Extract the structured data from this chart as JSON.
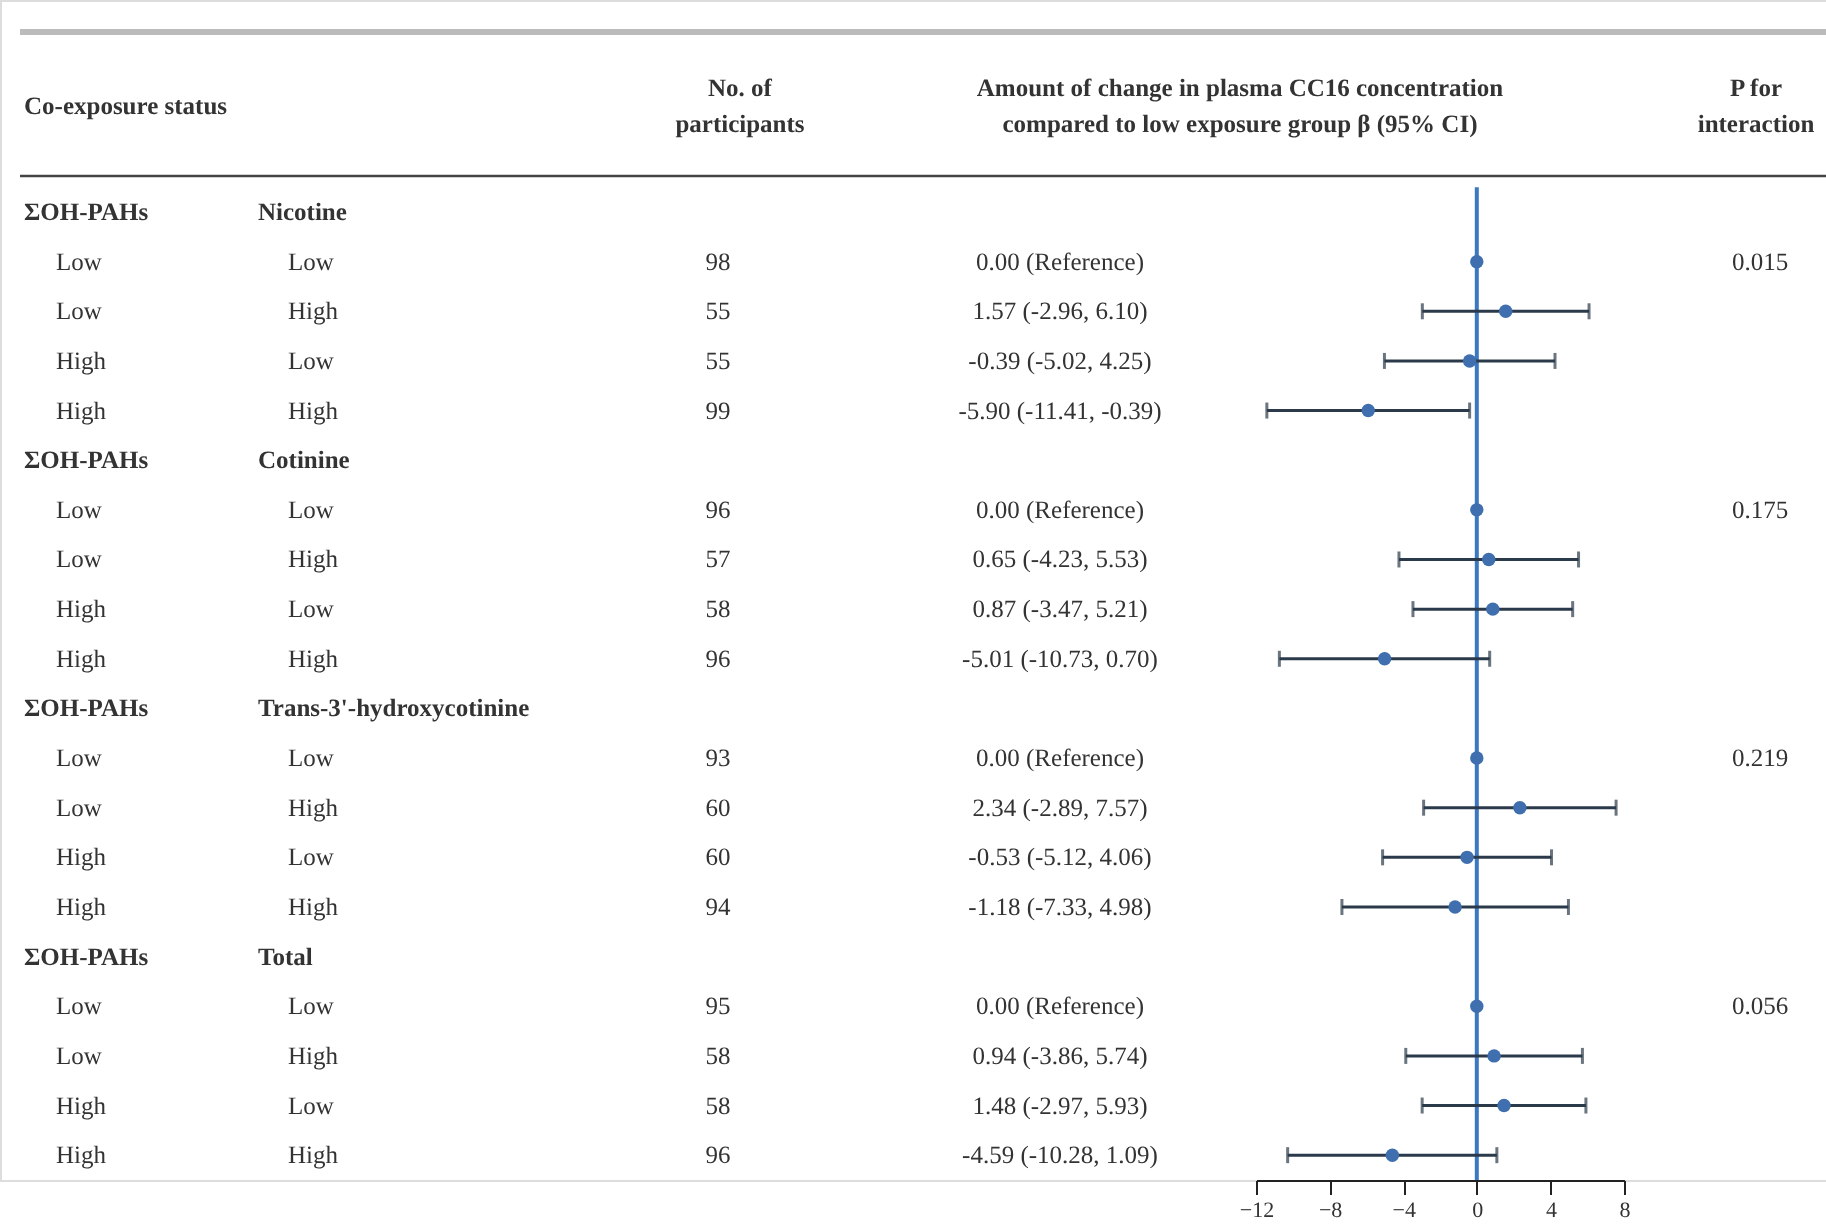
{
  "chart_data": [
    {
      "type": "other",
      "annotations": [
        "Co-exposure status",
        "No. of\nparticipants",
        "Amount of change in plasma CC16 concentration\ncompared to low exposure group  β (95% CI)",
        "P for\ninteraction",
        "ΣOH-PAHs",
        "Nicotine",
        "Low",
        "Low",
        "98",
        "0.00 (Reference)",
        "0.015",
        "Low",
        "High",
        "55",
        "1.57 (-2.96, 6.10)",
        "High",
        "Low",
        "55",
        "-0.39 (-5.02, 4.25)",
        "High",
        "High",
        "99",
        "-5.90 (-11.41, -0.39)",
        "ΣOH-PAHs",
        "Cotinine",
        "Low",
        "Low",
        "96",
        "0.00 (Reference)",
        "0.175",
        "Low",
        "High",
        "57",
        "0.65 (-4.23, 5.53)",
        "High",
        "Low",
        "58",
        "0.87 (-3.47, 5.21)",
        "High",
        "High",
        "96",
        "-5.01 (-10.73, 0.70)",
        "ΣOH-PAHs",
        "Trans-3'-hydroxycotinine",
        "Low",
        "Low",
        "93",
        "0.00 (Reference)",
        "0.219",
        "Low",
        "High",
        "60",
        "2.34 (-2.89, 7.57)",
        "High",
        "Low",
        "60",
        "-0.53 (-5.12, 4.06)",
        "High",
        "High",
        "94",
        "-1.18 (-7.33, 4.98)",
        "ΣOH-PAHs",
        "Total",
        "Low",
        "Low",
        "95",
        "0.00 (Reference)",
        "0.056",
        "Low",
        "High",
        "58",
        "0.94 (-3.86, 5.74)",
        "High",
        "Low",
        "58",
        "1.48 (-2.97, 5.93)",
        "High",
        "High",
        "96",
        "-4.59 (-10.28, 1.09)"
      ]
    },
    {
      "type": "scatter",
      "orientation": "horizontal",
      "marker": "circle",
      "grid": false,
      "tick_labels": "x",
      "categories": [
        null,
        null,
        null,
        null,
        null,
        null,
        null,
        null,
        null,
        null,
        null,
        null,
        null,
        null,
        null,
        null,
        null,
        null,
        null,
        null
      ],
      "xlim": [
        -12,
        8
      ],
      "xticks": [
        -12,
        -8,
        -4,
        0,
        4,
        8
      ],
      "ref_lines": [
        {
          "axis": "x",
          "value": 0,
          "color": "#3a78c2"
        }
      ],
      "series": [
        {
          "color": "#3f6fae",
          "values": [
            null,
            0.0,
            1.57,
            -0.39,
            -5.9,
            null,
            0.0,
            0.65,
            0.87,
            -5.01,
            null,
            0.0,
            2.34,
            -0.53,
            -1.18,
            null,
            0.0,
            0.94,
            1.48,
            -4.59
          ],
          "errors": [
            null,
            null,
            [
              -2.96,
              6.1
            ],
            [
              -5.02,
              4.25
            ],
            [
              -11.41,
              -0.39
            ],
            null,
            null,
            [
              -4.23,
              5.53
            ],
            [
              -3.47,
              5.21
            ],
            [
              -10.73,
              0.7
            ],
            null,
            null,
            [
              -2.89,
              7.57
            ],
            [
              -5.12,
              4.06
            ],
            [
              -7.33,
              4.98
            ],
            null,
            null,
            [
              -3.86,
              5.74
            ],
            [
              -2.97,
              5.93
            ],
            [
              -10.28,
              1.09
            ]
          ]
        }
      ]
    }
  ]
}
